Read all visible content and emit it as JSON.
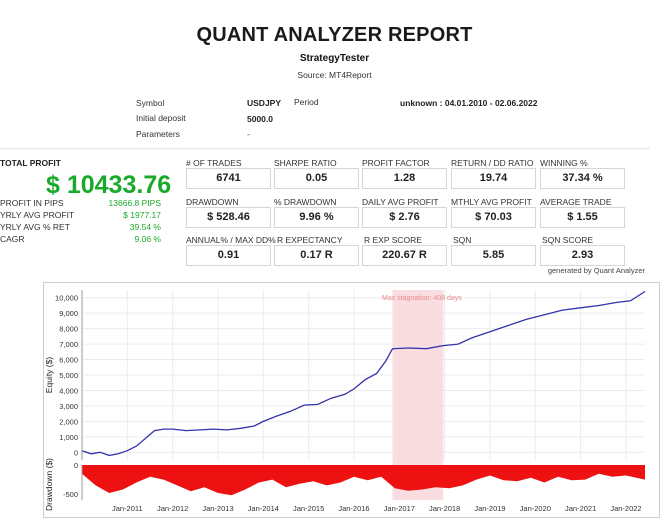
{
  "header": {
    "title": "QUANT ANALYZER REPORT",
    "strategy": "StrategyTester",
    "source": "Source: MT4Report"
  },
  "info": {
    "symbol_label": "Symbol",
    "symbol_value": "USDJPY",
    "period_label": "Period",
    "period_value": "unknown : 04.01.2010 - 02.06.2022",
    "deposit_label": "Initial deposit",
    "deposit_value": "5000.0",
    "parameters_label": "Parameters",
    "parameters_value": "-"
  },
  "total_profit": {
    "label": "TOTAL PROFIT",
    "value": "$ 10433.76"
  },
  "stats": [
    {
      "label": "PROFIT IN PIPS",
      "value": "13666.8 PIPS"
    },
    {
      "label": "YRLY AVG PROFIT",
      "value": "$ 1977.17"
    },
    {
      "label": "YRLY AVG % RET",
      "value": "39.54 %"
    },
    {
      "label": "CAGR",
      "value": "9.06 %"
    }
  ],
  "metrics": [
    {
      "label": "# OF TRADES",
      "value": "6741"
    },
    {
      "label": "SHARPE RATIO",
      "value": "0.05"
    },
    {
      "label": "PROFIT FACTOR",
      "value": "1.28"
    },
    {
      "label": "RETURN / DD RATIO",
      "value": "19.74"
    },
    {
      "label": "WINNING %",
      "value": "37.34 %"
    },
    {
      "label": "DRAWDOWN",
      "value": "$ 528.46"
    },
    {
      "label": "% DRAWDOWN",
      "value": "9.96 %"
    },
    {
      "label": "DAILY AVG PROFIT",
      "value": "$ 2.76"
    },
    {
      "label": "MTHLY AVG PROFIT",
      "value": "$ 70.03"
    },
    {
      "label": "AVERAGE TRADE",
      "value": "$ 1.55"
    },
    {
      "label": "ANNUAL% / MAX DD%",
      "value": "0.91"
    },
    {
      "label": "R EXPECTANCY",
      "value": "0.17 R"
    },
    {
      "label": "R EXP SCORE",
      "value": "220.67 R"
    },
    {
      "label": "SQN",
      "value": "5.85"
    },
    {
      "label": "SQN SCORE",
      "value": "2.93"
    }
  ],
  "generated_by": "generated by Quant Analyzer",
  "chart_data": [
    {
      "type": "line",
      "ylabel": "Equity ($)",
      "xlabel": "",
      "ylim": [
        -500,
        10500
      ],
      "yticks": [
        "10,000",
        "9,000",
        "8,000",
        "7,000",
        "6,000",
        "5,000",
        "4,000",
        "3,000",
        "2,000",
        "1,000",
        "0"
      ],
      "yticks_values": [
        10000,
        9000,
        8000,
        7000,
        6000,
        5000,
        4000,
        3000,
        2000,
        1000,
        0
      ],
      "annotation": "Max stagnation: 408 days",
      "stagnation_period": [
        2016.85,
        2017.97
      ],
      "line_color": "#3333aa",
      "x": [
        2010.0,
        2010.2,
        2010.4,
        2010.6,
        2010.8,
        2011.0,
        2011.2,
        2011.4,
        2011.6,
        2011.8,
        2012.0,
        2012.3,
        2012.6,
        2012.9,
        2013.2,
        2013.5,
        2013.8,
        2014.0,
        2014.3,
        2014.6,
        2014.9,
        2015.2,
        2015.5,
        2015.8,
        2016.0,
        2016.25,
        2016.5,
        2016.7,
        2016.85,
        2017.2,
        2017.6,
        2017.97,
        2018.3,
        2018.6,
        2019.0,
        2019.4,
        2019.8,
        2020.2,
        2020.6,
        2021.0,
        2021.4,
        2021.8,
        2022.1,
        2022.42
      ],
      "values": [
        100,
        -100,
        0,
        -200,
        -100,
        100,
        400,
        900,
        1400,
        1500,
        1500,
        1400,
        1450,
        1500,
        1450,
        1550,
        1700,
        2000,
        2350,
        2650,
        3050,
        3100,
        3500,
        3750,
        4100,
        4700,
        5100,
        5900,
        6700,
        6750,
        6700,
        6900,
        7000,
        7400,
        7800,
        8200,
        8600,
        8900,
        9200,
        9350,
        9500,
        9700,
        9800,
        10400
      ]
    },
    {
      "type": "area",
      "ylabel": "Drawdown ($)",
      "yticks": [
        "0",
        "-500"
      ],
      "yticks_values": [
        0,
        -500
      ],
      "ylim": [
        -600,
        0
      ],
      "fill_color": "#ee1111",
      "x_tick_labels": [
        "Jan-2011",
        "Jan-2012",
        "Jan-2013",
        "Jan-2014",
        "Jan-2015",
        "Jan-2016",
        "Jan-2017",
        "Jan-2018",
        "Jan-2019",
        "Jan-2020",
        "Jan-2021",
        "Jan-2022"
      ],
      "x_ticks_values": [
        2011,
        2012,
        2013,
        2014,
        2015,
        2016,
        2017,
        2018,
        2019,
        2020,
        2021,
        2022
      ],
      "x": [
        2010.0,
        2010.3,
        2010.6,
        2010.9,
        2011.2,
        2011.5,
        2011.8,
        2012.1,
        2012.4,
        2012.7,
        2013.0,
        2013.3,
        2013.6,
        2013.9,
        2014.2,
        2014.5,
        2014.8,
        2015.1,
        2015.4,
        2015.7,
        2016.0,
        2016.3,
        2016.6,
        2016.9,
        2017.2,
        2017.5,
        2017.8,
        2018.1,
        2018.4,
        2018.7,
        2019.0,
        2019.3,
        2019.6,
        2019.9,
        2020.2,
        2020.5,
        2020.8,
        2021.1,
        2021.4,
        2021.7,
        2022.0,
        2022.42
      ],
      "values": [
        -150,
        -350,
        -480,
        -420,
        -300,
        -200,
        -250,
        -350,
        -450,
        -380,
        -480,
        -520,
        -420,
        -300,
        -250,
        -380,
        -320,
        -280,
        -350,
        -300,
        -200,
        -260,
        -200,
        -400,
        -440,
        -420,
        -380,
        -400,
        -350,
        -250,
        -180,
        -260,
        -280,
        -220,
        -300,
        -200,
        -260,
        -250,
        -150,
        -200,
        -180,
        -250
      ]
    }
  ]
}
